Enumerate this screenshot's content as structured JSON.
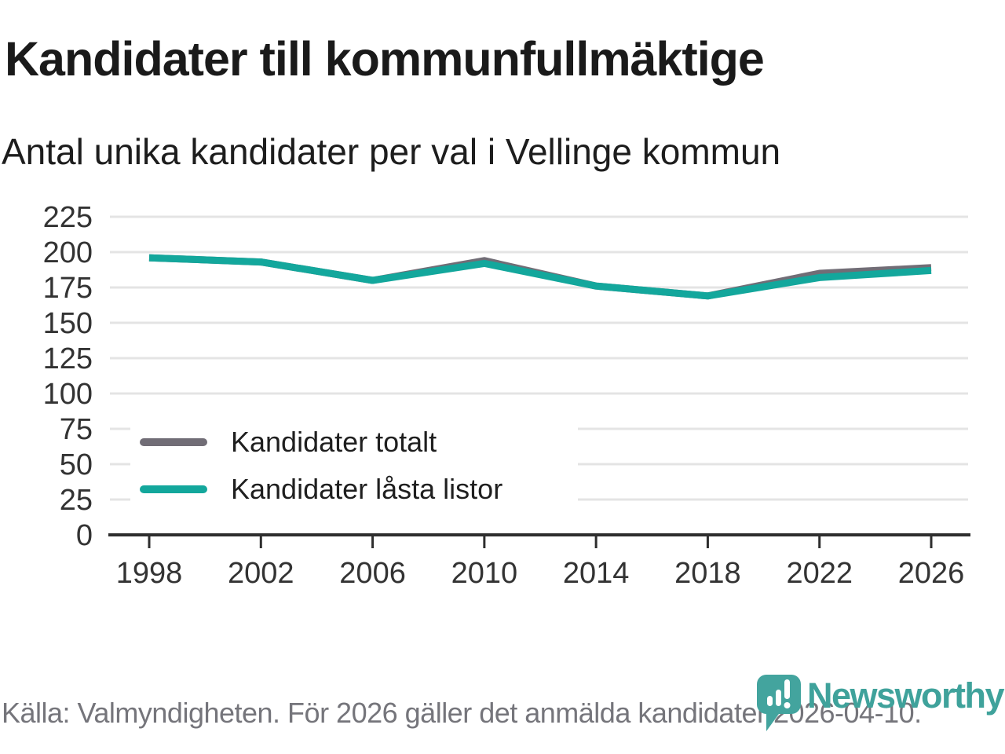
{
  "header": {
    "title": "Kandidater till kommunfullmäktige",
    "subtitle": "Antal unika kandidater per val i Vellinge kommun"
  },
  "chart_data": {
    "type": "line",
    "x": [
      1998,
      2002,
      2006,
      2010,
      2014,
      2018,
      2022,
      2026
    ],
    "series": [
      {
        "name": "Kandidater totalt",
        "color": "#716d76",
        "values": [
          196,
          193,
          180,
          194,
          176,
          169,
          185,
          189
        ]
      },
      {
        "name": "Kandidater låsta listor",
        "color": "#13a79c",
        "values": [
          196,
          193,
          180,
          192,
          176,
          169,
          182,
          187
        ]
      }
    ],
    "title": "Kandidater till kommunfullmäktige",
    "subtitle": "Antal unika kandidater per val i Vellinge kommun",
    "xlabel": "",
    "ylabel": "",
    "ylim": [
      0,
      225
    ],
    "ytick_step": 25,
    "xtick_labels": [
      "1998",
      "2002",
      "2006",
      "2010",
      "2014",
      "2018",
      "2022",
      "2026"
    ],
    "grid": "horizontal-only",
    "legend_position": "inside-bottom-left"
  },
  "footer": {
    "source": "Källa: Valmyndigheten. För 2026 gäller det anmälda kandidater 2026-04-10.",
    "brand": "Newsworthy"
  },
  "colors": {
    "series_total_gray": "#716d76",
    "series_locked_teal": "#13a79c",
    "gridline": "#e4e4e4",
    "axis": "#2e2e2e",
    "axis_text": "#333333",
    "title_text": "#1a1a1a",
    "footer_text": "#75757b",
    "logo_teal": "#43a49e"
  }
}
